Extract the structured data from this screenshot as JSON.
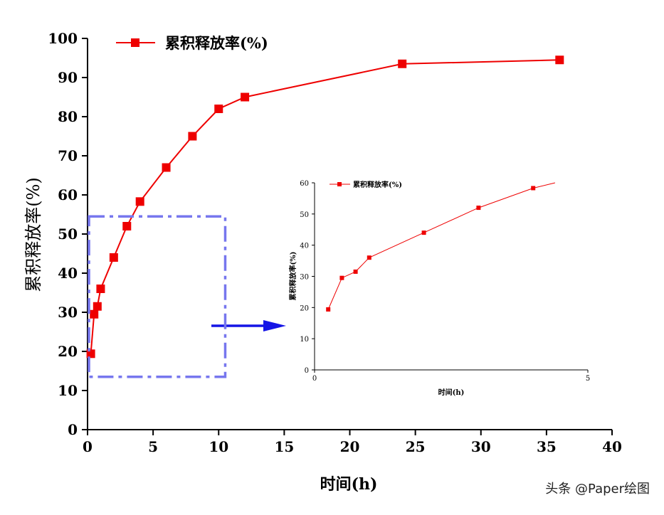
{
  "colors": {
    "series": "#ee0000",
    "zoom_box": "#7777ee",
    "arrow": "#1515e6",
    "axis": "#000000"
  },
  "watermark": "头条 @Paper绘图",
  "chart_data": [
    {
      "type": "line",
      "name": "main",
      "title": "",
      "xlabel": "时间(h)",
      "ylabel": "累积释放率(%)",
      "xlim": [
        0,
        40
      ],
      "ylim": [
        0,
        100
      ],
      "xticks": [
        0,
        5,
        10,
        15,
        20,
        25,
        30,
        35,
        40
      ],
      "yticks": [
        0,
        10,
        20,
        30,
        40,
        50,
        60,
        70,
        80,
        90,
        100
      ],
      "series": [
        {
          "name": "累积释放率(%)",
          "x": [
            0.25,
            0.5,
            0.75,
            1,
            2,
            3,
            4,
            6,
            8,
            10,
            12,
            24,
            36
          ],
          "y": [
            19.4,
            29.5,
            31.5,
            36,
            44,
            52,
            58.3,
            67,
            75,
            82,
            85,
            93.5,
            94.5
          ]
        }
      ],
      "zoom_region": {
        "x": [
          0,
          10.5
        ],
        "y": [
          13.5,
          54.5
        ]
      }
    },
    {
      "type": "line",
      "name": "inset",
      "title": "",
      "xlabel": "时间(h)",
      "ylabel": "累积释放率(%)",
      "xlim": [
        0,
        5
      ],
      "ylim": [
        0,
        60
      ],
      "xticks": [
        0,
        5
      ],
      "yticks": [
        0,
        10,
        20,
        30,
        40,
        50,
        60
      ],
      "series": [
        {
          "name": "累积释放率(%)",
          "x": [
            0.25,
            0.5,
            0.75,
            1,
            2,
            3,
            4,
            4.4
          ],
          "y": [
            19.4,
            29.5,
            31.5,
            36,
            44,
            52,
            58.3,
            60
          ]
        }
      ]
    }
  ]
}
